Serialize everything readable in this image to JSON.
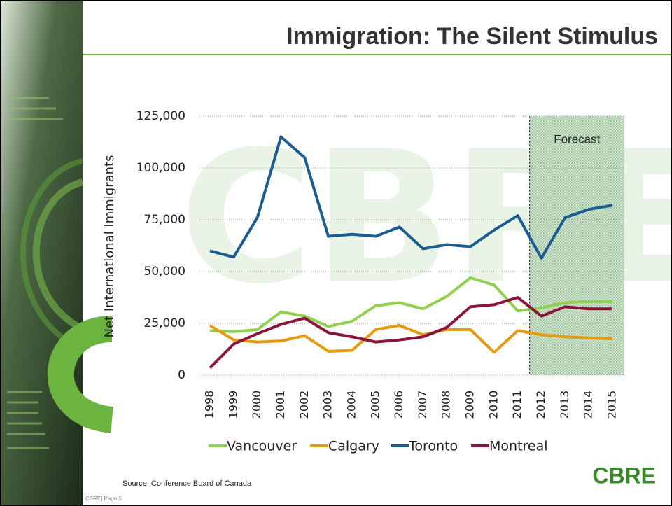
{
  "chart_data": {
    "type": "line",
    "title": "Immigration: The Silent Stimulus",
    "y_label": "Net International Immigrants",
    "source": "Source: Conference Board of Canada",
    "footer": "CBRE| Page 5",
    "logo": "CBRE",
    "annotation": {
      "text": "Forecast",
      "from": "2012",
      "to": "2015"
    },
    "categories": [
      "1998",
      "1999",
      "2000",
      "2001",
      "2002",
      "2003",
      "2004",
      "2005",
      "2006",
      "2007",
      "2008",
      "2009",
      "2010",
      "2011",
      "2012",
      "2013",
      "2014",
      "2015"
    ],
    "series": [
      {
        "name": "Vancouver",
        "color": "#92d050",
        "values": [
          21500,
          21000,
          22000,
          30500,
          28500,
          23500,
          26000,
          33500,
          35000,
          32000,
          38000,
          47000,
          43500,
          31000,
          32500,
          35000,
          35500,
          35500
        ]
      },
      {
        "name": "Calgary",
        "color": "#e49b0f",
        "values": [
          24000,
          17000,
          16000,
          16500,
          19000,
          11500,
          12000,
          22000,
          24000,
          19500,
          22000,
          22000,
          11000,
          21500,
          19500,
          18500,
          18000,
          17500
        ]
      },
      {
        "name": "Toronto",
        "color": "#1b5c93",
        "values": [
          60000,
          57000,
          76000,
          115000,
          105000,
          67000,
          68000,
          67000,
          71500,
          61000,
          63000,
          62000,
          70000,
          77000,
          56500,
          76000,
          80000,
          82000
        ]
      },
      {
        "name": "Montreal",
        "color": "#8b1538",
        "values": [
          3500,
          15000,
          20000,
          24500,
          27500,
          20500,
          18500,
          16000,
          17000,
          18500,
          23000,
          33000,
          34000,
          37500,
          28500,
          33000,
          32000,
          32000
        ]
      }
    ],
    "ylim": [
      0,
      125000
    ],
    "yticks": [
      0,
      {
        "value": 25000,
        "label": "25,000"
      },
      {
        "value": 50000,
        "label": "50,000"
      },
      {
        "value": 75000,
        "label": "75,000"
      },
      {
        "value": 100000,
        "label": "100,000"
      },
      {
        "value": 125000,
        "label": "125,000"
      }
    ],
    "grid": true,
    "legend": "bottom"
  }
}
